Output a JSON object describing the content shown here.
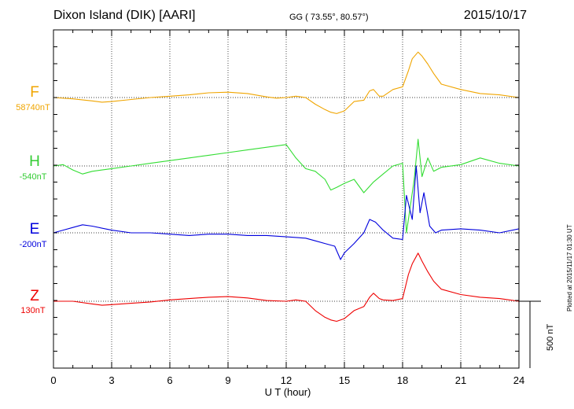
{
  "header": {
    "station": "Dixon Island (DIK)  [AARI]",
    "coords": "GG ( 73.55°,  80.57°)",
    "date": "2015/10/17"
  },
  "footer": {
    "plotted": "Plotted at 2015/11/17 01:30 UT",
    "scale": "500 nT"
  },
  "chart_data": {
    "type": "line",
    "title": "Dixon Island (DIK)  [AARI]",
    "xlabel": "U T (hour)",
    "ylabel": "",
    "xlim": [
      0,
      24
    ],
    "xticks": [
      "0",
      "3",
      "6",
      "9",
      "12",
      "15",
      "18",
      "21",
      "24"
    ],
    "grid": true,
    "scale_bar_nT": 500,
    "series": [
      {
        "name": "F",
        "baseline_label": "58740nT",
        "color": "#f0a500",
        "x": [
          0,
          1,
          2,
          2.5,
          3,
          4,
          5,
          6,
          7,
          8,
          9,
          10,
          11,
          11.5,
          12,
          12.5,
          13,
          13.5,
          14,
          14.3,
          14.6,
          15,
          15.5,
          16,
          16.3,
          16.5,
          16.8,
          17,
          17.5,
          18,
          18.3,
          18.5,
          18.8,
          19,
          19.3,
          19.6,
          20,
          21,
          22,
          23,
          24
        ],
        "y": [
          0,
          -10,
          -25,
          -35,
          -30,
          -15,
          0,
          10,
          20,
          35,
          40,
          30,
          5,
          -5,
          0,
          10,
          0,
          -50,
          -90,
          -110,
          -120,
          -100,
          -30,
          -20,
          50,
          60,
          10,
          10,
          60,
          80,
          200,
          290,
          340,
          310,
          250,
          180,
          100,
          60,
          30,
          20,
          0
        ]
      },
      {
        "name": "H",
        "baseline_label": "-540nT",
        "color": "#33dd33",
        "x": [
          0,
          0.5,
          1,
          1.5,
          2,
          3,
          4,
          5,
          6,
          7,
          8,
          9,
          10,
          11,
          12,
          12.5,
          13,
          13.5,
          14,
          14.3,
          14.6,
          15,
          15.5,
          16,
          16.5,
          17,
          17.5,
          18,
          18.2,
          18.4,
          18.6,
          18.8,
          19,
          19.3,
          19.6,
          20,
          21,
          22,
          23,
          24
        ],
        "y": [
          0,
          10,
          -30,
          -60,
          -40,
          -20,
          0,
          20,
          40,
          60,
          80,
          100,
          120,
          140,
          160,
          60,
          -20,
          -40,
          -100,
          -180,
          -160,
          -130,
          -100,
          -200,
          -120,
          -60,
          0,
          20,
          -500,
          -300,
          -100,
          200,
          -80,
          60,
          -40,
          -10,
          10,
          60,
          20,
          0
        ]
      },
      {
        "name": "E",
        "baseline_label": "-200nT",
        "color": "#0000dd",
        "x": [
          0,
          0.5,
          1,
          1.5,
          2,
          3,
          4,
          5,
          6,
          7,
          8,
          9,
          10,
          11,
          12,
          13,
          13.5,
          14,
          14.5,
          14.8,
          15,
          15.5,
          16,
          16.3,
          16.6,
          17,
          17.5,
          18,
          18.2,
          18.5,
          18.7,
          18.9,
          19.1,
          19.4,
          19.7,
          20,
          21,
          22,
          23,
          24
        ],
        "y": [
          0,
          20,
          40,
          60,
          50,
          20,
          0,
          0,
          -10,
          -20,
          -10,
          -10,
          -20,
          -20,
          -30,
          -40,
          -60,
          -80,
          -100,
          -200,
          -150,
          -80,
          0,
          100,
          80,
          20,
          -40,
          -50,
          280,
          100,
          500,
          150,
          300,
          50,
          0,
          20,
          30,
          20,
          0,
          30
        ]
      },
      {
        "name": "Z",
        "baseline_label": "130nT",
        "color": "#ee0000",
        "x": [
          0,
          1,
          2,
          2.5,
          3,
          4,
          5,
          6,
          7,
          8,
          9,
          10,
          11,
          12,
          12.5,
          13,
          13.5,
          14,
          14.3,
          14.6,
          15,
          15.5,
          16,
          16.3,
          16.5,
          16.8,
          17,
          17.5,
          18,
          18.3,
          18.5,
          18.8,
          19,
          19.3,
          19.6,
          20,
          21,
          22,
          23,
          24
        ],
        "y": [
          0,
          0,
          -20,
          -30,
          -25,
          -15,
          -5,
          10,
          20,
          30,
          35,
          25,
          5,
          0,
          10,
          0,
          -70,
          -120,
          -140,
          -150,
          -130,
          -70,
          -40,
          30,
          60,
          20,
          10,
          5,
          20,
          200,
          280,
          360,
          300,
          220,
          150,
          90,
          50,
          30,
          20,
          0
        ]
      }
    ]
  }
}
